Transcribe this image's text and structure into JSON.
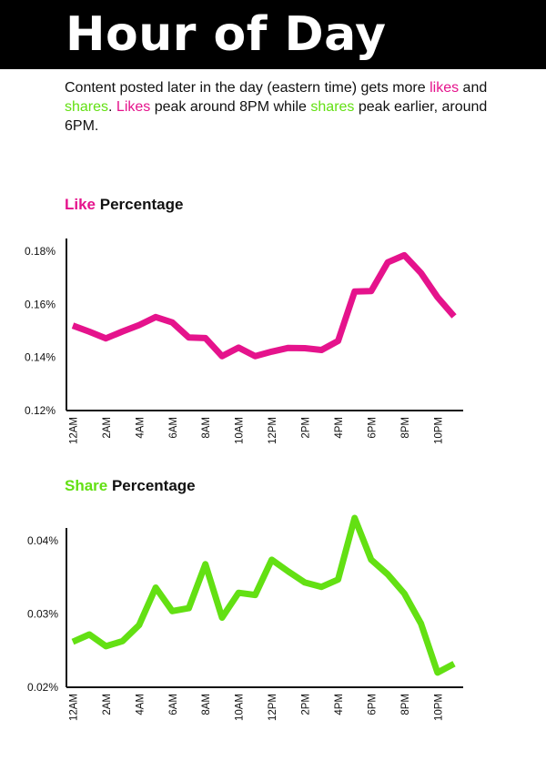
{
  "header": {
    "title": "Hour of Day"
  },
  "intro": {
    "t1": "Content posted later in the day (eastern time) gets more ",
    "likes": "likes",
    "t2": " and ",
    "shares": "shares",
    "t3": ". ",
    "likes2": "Likes",
    "t4": " peak around 8PM while ",
    "shares2": "shares",
    "t5": " peak earlier, around 6PM."
  },
  "colors": {
    "likes": "#e5138c",
    "shares": "#63e013",
    "axis": "#111111"
  },
  "chart_data": [
    {
      "type": "line",
      "title_colored": "Like",
      "title_rest": " Percentage",
      "color": "#e5138c",
      "x": [
        "12AM",
        "1AM",
        "2AM",
        "3AM",
        "4AM",
        "5AM",
        "6AM",
        "7AM",
        "8AM",
        "9AM",
        "10AM",
        "11AM",
        "12PM",
        "1PM",
        "2PM",
        "3PM",
        "4PM",
        "5PM",
        "6PM",
        "7PM",
        "8PM",
        "9PM",
        "10PM",
        "11PM"
      ],
      "x_tick_labels": [
        "12AM",
        "2AM",
        "4AM",
        "6AM",
        "8AM",
        "10AM",
        "12PM",
        "2PM",
        "4PM",
        "6PM",
        "8PM",
        "10PM"
      ],
      "values": [
        0.152,
        0.1497,
        0.1472,
        0.1498,
        0.1522,
        0.1552,
        0.1532,
        0.1475,
        0.1473,
        0.1405,
        0.1437,
        0.1405,
        0.1422,
        0.1436,
        0.1435,
        0.1428,
        0.1462,
        0.1648,
        0.165,
        0.1758,
        0.1785,
        0.1718,
        0.1627,
        0.1555
      ],
      "y_ticks": [
        0.12,
        0.14,
        0.16,
        0.18
      ],
      "y_tick_labels": [
        "0.12%",
        "0.14%",
        "0.16%",
        "0.18%"
      ],
      "ylim": [
        0.12,
        0.18
      ]
    },
    {
      "type": "line",
      "title_colored": "Share",
      "title_rest": " Percentage",
      "color": "#63e013",
      "x": [
        "12AM",
        "1AM",
        "2AM",
        "3AM",
        "4AM",
        "5AM",
        "6AM",
        "7AM",
        "8AM",
        "9AM",
        "10AM",
        "11AM",
        "12PM",
        "1PM",
        "2PM",
        "3PM",
        "4PM",
        "5PM",
        "6PM",
        "7PM",
        "8PM",
        "9PM",
        "10PM",
        "11PM"
      ],
      "x_tick_labels": [
        "12AM",
        "2AM",
        "4AM",
        "6AM",
        "8AM",
        "10AM",
        "12PM",
        "2PM",
        "4PM",
        "6PM",
        "8PM",
        "10PM"
      ],
      "values": [
        0.0262,
        0.0272,
        0.0256,
        0.0263,
        0.0285,
        0.0336,
        0.0304,
        0.0308,
        0.0368,
        0.0295,
        0.0329,
        0.0326,
        0.0374,
        0.0358,
        0.0343,
        0.0337,
        0.0347,
        0.0431,
        0.0374,
        0.0354,
        0.0328,
        0.0287,
        0.022,
        0.0232
      ],
      "y_ticks": [
        0.02,
        0.03,
        0.04
      ],
      "y_tick_labels": [
        "0.02%",
        "0.03%",
        "0.04%"
      ],
      "ylim": [
        0.02,
        0.04
      ]
    }
  ]
}
